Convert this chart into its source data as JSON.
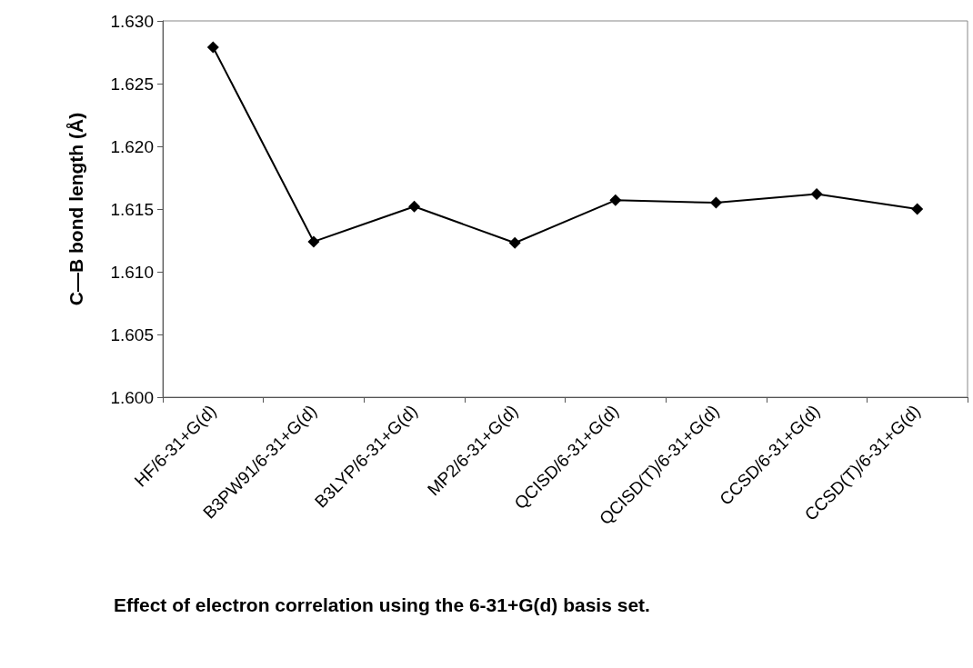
{
  "chart_data": {
    "type": "line",
    "title": "Effect of electron correlation using the 6-31+G(d) basis set.",
    "ylabel": "C—B bond length (Å)",
    "categories": [
      "HF/6-31+G(d)",
      "B3PW91/6-31+G(d)",
      "B3LYP/6-31+G(d)",
      "MP2/6-31+G(d)",
      "QCISD/6-31+G(d)",
      "QCISD(T)/6-31+G(d)",
      "CCSD/6-31+G(d)",
      "CCSD(T)/6-31+G(d)"
    ],
    "series": [
      {
        "color": "#000000",
        "values": [
          1.6279,
          1.6124,
          1.6152,
          1.6123,
          1.6157,
          1.6155,
          1.6162,
          1.615
        ]
      }
    ],
    "ylim": [
      1.6,
      1.63
    ],
    "yticks": [
      {
        "value": 1.6,
        "label": "1.600"
      },
      {
        "value": 1.605,
        "label": "1.605"
      },
      {
        "value": 1.61,
        "label": "1.610"
      },
      {
        "value": 1.615,
        "label": "1.615"
      },
      {
        "value": 1.62,
        "label": "1.620"
      },
      {
        "value": 1.625,
        "label": "1.625"
      },
      {
        "value": 1.63,
        "label": "1.630"
      }
    ],
    "grid": false,
    "marker": "diamond",
    "line_style": "solid"
  }
}
